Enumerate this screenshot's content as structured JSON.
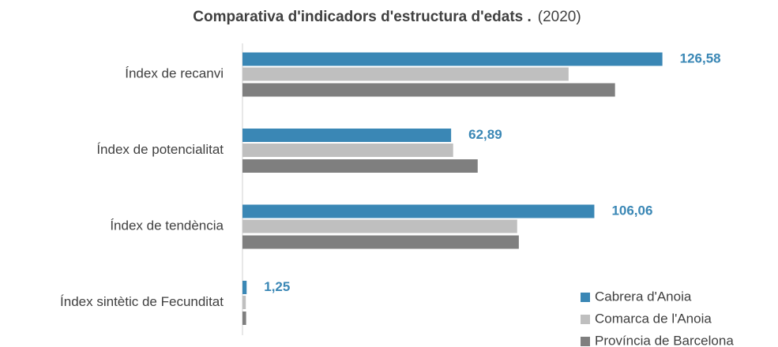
{
  "chart_data": {
    "type": "hbar",
    "title": "Comparativa d'indicadors d'estructura d'edats .",
    "subtitle": "(2020)",
    "categories": [
      "Índex de recanvi",
      "Índex de potencialitat",
      "Índex de tendència",
      "Índex sintètic de Fecunditat"
    ],
    "series": [
      {
        "name": "Cabrera d'Anoia",
        "color": "#3a87b5",
        "values": [
          126.58,
          62.89,
          106.06,
          1.25
        ],
        "value_labels": [
          "126,58",
          "62,89",
          "106,06",
          "1,25"
        ]
      },
      {
        "name": "Comarca de l'Anoia",
        "color": "#bfbfbf",
        "values": [
          98.3,
          63.5,
          82.8,
          1.0
        ]
      },
      {
        "name": "Província de Barcelona",
        "color": "#7f7f7f",
        "values": [
          112.3,
          70.9,
          83.3,
          1.1
        ]
      }
    ],
    "xlim": [
      0,
      150
    ],
    "legend": "bottom-right"
  }
}
